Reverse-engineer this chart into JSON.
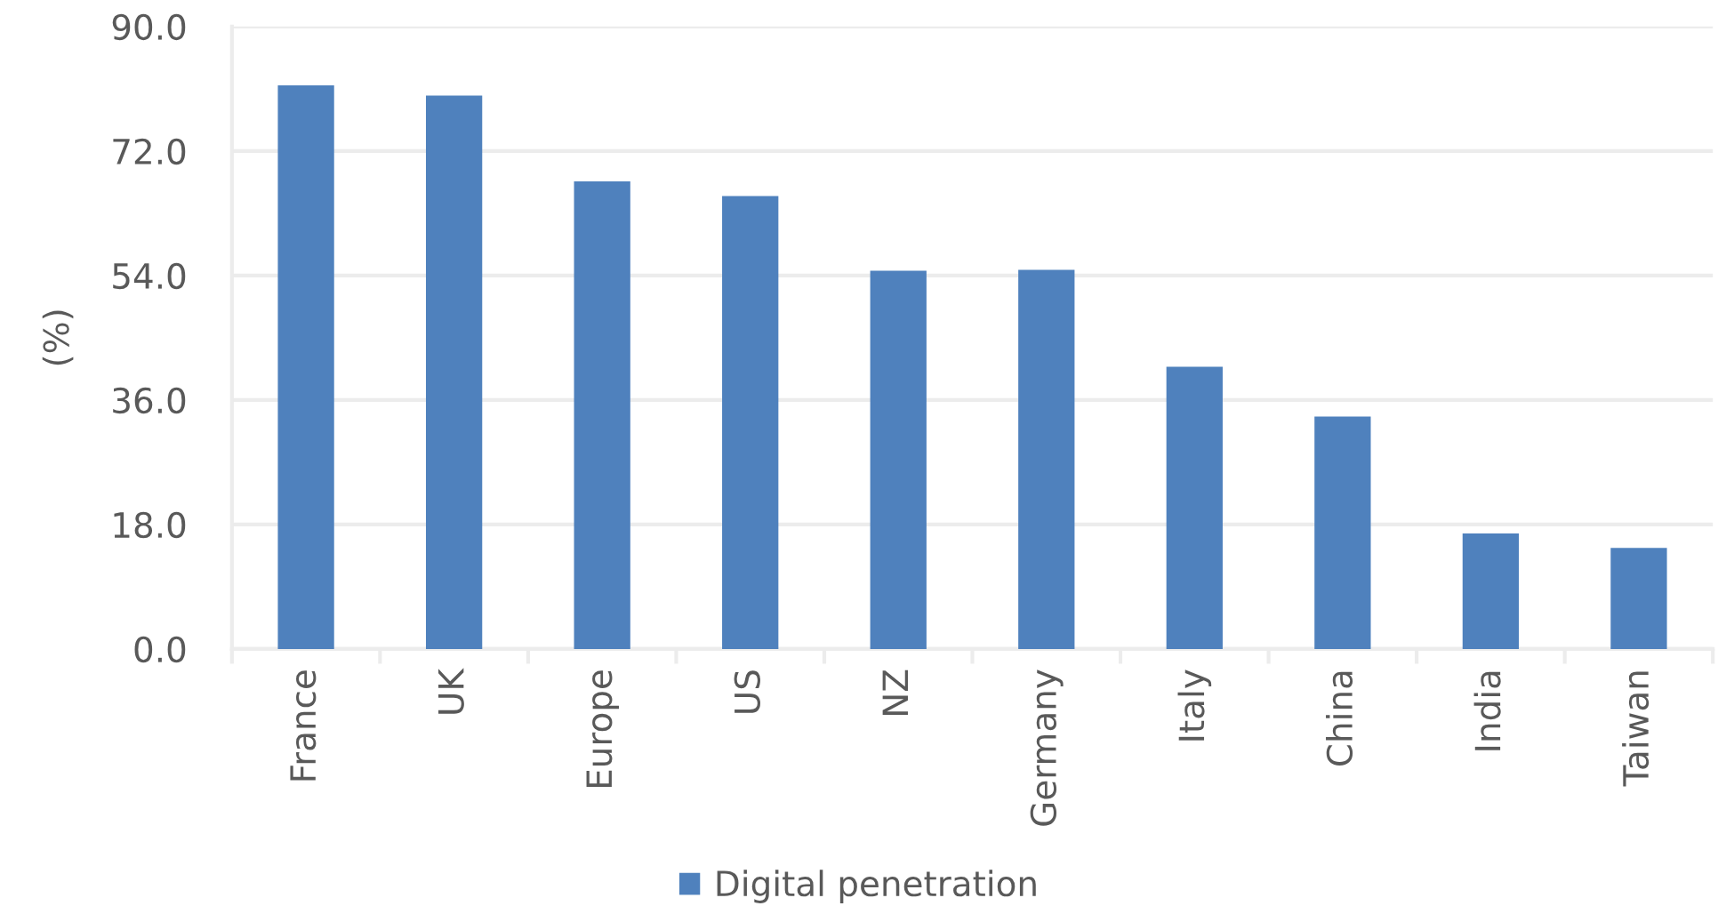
{
  "chart_data": {
    "type": "bar",
    "categories": [
      "France",
      "UK",
      "Europe",
      "US",
      "NZ",
      "Germany",
      "Italy",
      "China",
      "India",
      "Taiwan"
    ],
    "series": [
      {
        "name": "Digital penetration",
        "color": "#4f81bd",
        "values": [
          81.5,
          80.0,
          67.6,
          65.5,
          54.7,
          54.8,
          40.8,
          33.6,
          16.7,
          14.6
        ]
      }
    ],
    "ylabel": "(%)",
    "ylim": [
      0,
      90
    ],
    "yticks": [
      {
        "value": 0,
        "label": "0.0"
      },
      {
        "value": 18,
        "label": "18.0"
      },
      {
        "value": 36,
        "label": "36.0"
      },
      {
        "value": 54,
        "label": "54.0"
      },
      {
        "value": 72,
        "label": "72.0"
      },
      {
        "value": 90,
        "label": "90.0"
      }
    ],
    "grid": "y",
    "legend": "bottom"
  }
}
